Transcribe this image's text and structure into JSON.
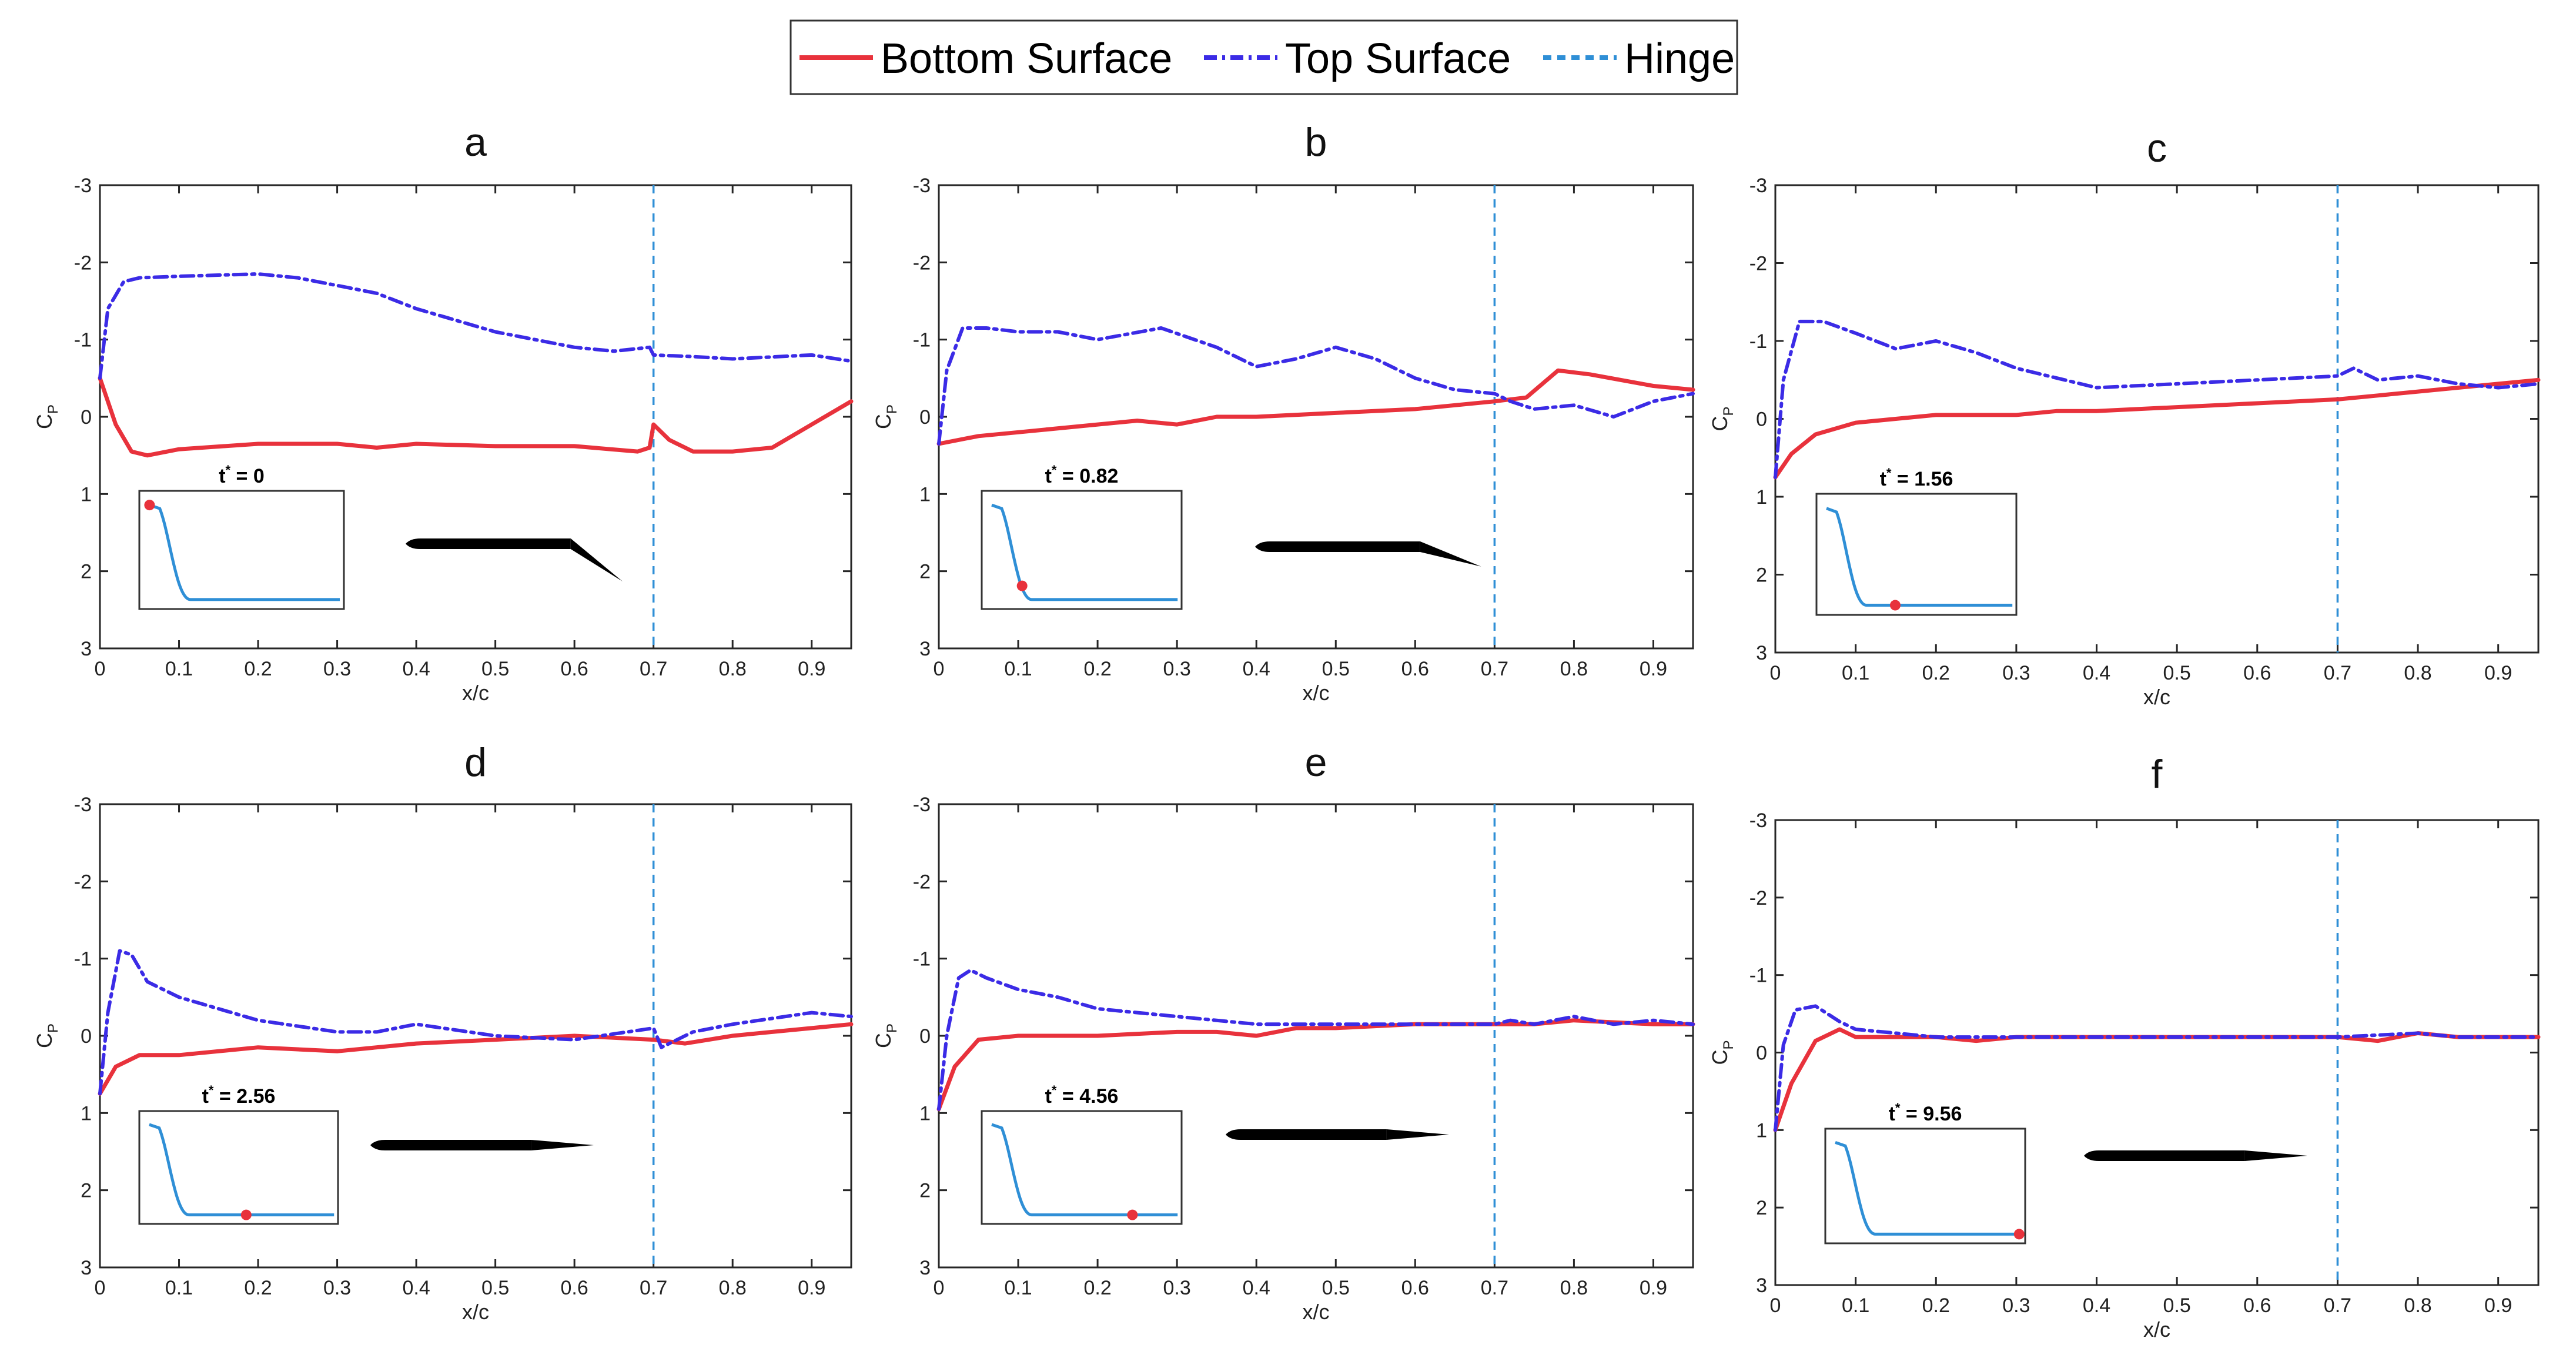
{
  "chart_data": {
    "type": "line",
    "legend": {
      "placement": "top-center",
      "entries": [
        {
          "name": "Bottom Surface",
          "color": "#e8323c",
          "style": "solid"
        },
        {
          "name": "Top Surface",
          "color": "#3b2be6",
          "style": "dash-dot"
        },
        {
          "name": "Hinge",
          "color": "#2f8fd6",
          "style": "dashed"
        }
      ]
    },
    "xlabel": "x/c",
    "ylabel": "C",
    "ylabel_sub": "P",
    "xlim": [
      0,
      0.95
    ],
    "ylim": [
      -3,
      3
    ],
    "y_reversed": true,
    "xticks": [
      0,
      0.1,
      0.2,
      0.3,
      0.4,
      0.5,
      0.6,
      0.7,
      0.8,
      0.9
    ],
    "xtick_labels": [
      "0",
      "0.1",
      "0.2",
      "0.3",
      "0.4",
      "0.5",
      "0.6",
      "0.7",
      "0.8",
      "0.9"
    ],
    "yticks": [
      -3,
      -2,
      -1,
      0,
      1,
      2,
      3
    ],
    "ytick_labels": [
      "-3",
      "-2",
      "-1",
      "0",
      "1",
      "2",
      "3"
    ],
    "hinge_x": 0.7,
    "inset": {
      "time_label_prefix": "t",
      "time_label_sup": "*",
      "curve_color": "#2f8fd6",
      "marker_color": "#e8323c"
    },
    "panels": [
      {
        "title": "a",
        "time": "0",
        "marker_x": 0.0,
        "flap_angle": 36,
        "bottom": {
          "x": [
            0,
            0.02,
            0.04,
            0.06,
            0.1,
            0.2,
            0.3,
            0.35,
            0.4,
            0.5,
            0.6,
            0.68,
            0.695,
            0.7,
            0.72,
            0.75,
            0.8,
            0.85,
            0.9,
            0.95
          ],
          "y": [
            -0.5,
            0.1,
            0.45,
            0.5,
            0.42,
            0.35,
            0.35,
            0.4,
            0.35,
            0.38,
            0.38,
            0.45,
            0.4,
            0.1,
            0.3,
            0.45,
            0.45,
            0.4,
            0.1,
            -0.2
          ]
        },
        "top": {
          "x": [
            0,
            0.01,
            0.03,
            0.05,
            0.1,
            0.2,
            0.25,
            0.3,
            0.35,
            0.4,
            0.5,
            0.6,
            0.65,
            0.695,
            0.7,
            0.75,
            0.8,
            0.9,
            0.95
          ],
          "y": [
            -0.5,
            -1.4,
            -1.75,
            -1.8,
            -1.82,
            -1.85,
            -1.8,
            -1.7,
            -1.6,
            -1.4,
            -1.1,
            -0.9,
            -0.85,
            -0.9,
            -0.8,
            -0.78,
            -0.75,
            -0.8,
            -0.72
          ]
        }
      },
      {
        "title": "b",
        "time": "0.82",
        "marker_x": 0.38,
        "flap_angle": 18,
        "bottom": {
          "x": [
            0,
            0.05,
            0.1,
            0.2,
            0.25,
            0.3,
            0.35,
            0.4,
            0.5,
            0.6,
            0.7,
            0.74,
            0.78,
            0.82,
            0.9,
            0.95
          ],
          "y": [
            0.35,
            0.25,
            0.2,
            0.1,
            0.05,
            0.1,
            0.0,
            0.0,
            -0.05,
            -0.1,
            -0.2,
            -0.25,
            -0.6,
            -0.55,
            -0.4,
            -0.35
          ]
        },
        "top": {
          "x": [
            0,
            0.01,
            0.03,
            0.06,
            0.1,
            0.15,
            0.2,
            0.28,
            0.35,
            0.4,
            0.45,
            0.5,
            0.55,
            0.6,
            0.65,
            0.7,
            0.72,
            0.75,
            0.8,
            0.85,
            0.9,
            0.95
          ],
          "y": [
            0.35,
            -0.6,
            -1.15,
            -1.15,
            -1.1,
            -1.1,
            -1.0,
            -1.15,
            -0.9,
            -0.65,
            -0.75,
            -0.9,
            -0.75,
            -0.5,
            -0.35,
            -0.3,
            -0.2,
            -0.1,
            -0.15,
            0.0,
            -0.2,
            -0.3
          ]
        }
      },
      {
        "title": "c",
        "time": "1.56",
        "marker_x": 0.6,
        "flap_angle": 0,
        "bottom": {
          "x": [
            0,
            0.02,
            0.05,
            0.1,
            0.2,
            0.3,
            0.35,
            0.4,
            0.5,
            0.6,
            0.7,
            0.75,
            0.8,
            0.85,
            0.9,
            0.95
          ],
          "y": [
            0.75,
            0.45,
            0.2,
            0.05,
            -0.05,
            -0.05,
            -0.1,
            -0.1,
            -0.15,
            -0.2,
            -0.25,
            -0.3,
            -0.35,
            -0.4,
            -0.45,
            -0.5
          ]
        },
        "top": {
          "x": [
            0,
            0.01,
            0.03,
            0.06,
            0.1,
            0.15,
            0.2,
            0.25,
            0.3,
            0.4,
            0.5,
            0.6,
            0.7,
            0.72,
            0.75,
            0.8,
            0.85,
            0.9,
            0.95
          ],
          "y": [
            0.75,
            -0.5,
            -1.25,
            -1.25,
            -1.1,
            -0.9,
            -1.0,
            -0.85,
            -0.65,
            -0.4,
            -0.45,
            -0.5,
            -0.55,
            -0.65,
            -0.5,
            -0.55,
            -0.45,
            -0.4,
            -0.45
          ]
        }
      },
      {
        "title": "d",
        "time": "2.56",
        "marker_x": 0.7,
        "flap_angle": 0,
        "bottom": {
          "x": [
            0,
            0.02,
            0.05,
            0.1,
            0.2,
            0.3,
            0.4,
            0.5,
            0.6,
            0.7,
            0.74,
            0.8,
            0.85,
            0.9,
            0.95
          ],
          "y": [
            0.75,
            0.4,
            0.25,
            0.25,
            0.15,
            0.2,
            0.1,
            0.05,
            0.0,
            0.05,
            0.1,
            0.0,
            -0.05,
            -0.1,
            -0.15
          ]
        },
        "top": {
          "x": [
            0,
            0.01,
            0.025,
            0.04,
            0.06,
            0.1,
            0.15,
            0.2,
            0.3,
            0.35,
            0.4,
            0.5,
            0.6,
            0.7,
            0.71,
            0.75,
            0.8,
            0.9,
            0.95
          ],
          "y": [
            0.75,
            -0.3,
            -1.1,
            -1.05,
            -0.7,
            -0.5,
            -0.35,
            -0.2,
            -0.05,
            -0.05,
            -0.15,
            0.0,
            0.05,
            -0.1,
            0.15,
            -0.05,
            -0.15,
            -0.3,
            -0.25
          ]
        }
      },
      {
        "title": "e",
        "time": "4.56",
        "marker_x": 0.85,
        "flap_angle": 0,
        "bottom": {
          "x": [
            0,
            0.02,
            0.05,
            0.1,
            0.2,
            0.3,
            0.35,
            0.4,
            0.45,
            0.5,
            0.6,
            0.7,
            0.75,
            0.8,
            0.9,
            0.95
          ],
          "y": [
            0.95,
            0.4,
            0.05,
            0.0,
            0.0,
            -0.05,
            -0.05,
            0.0,
            -0.1,
            -0.1,
            -0.15,
            -0.15,
            -0.15,
            -0.2,
            -0.15,
            -0.15
          ]
        },
        "top": {
          "x": [
            0,
            0.01,
            0.025,
            0.04,
            0.06,
            0.1,
            0.15,
            0.2,
            0.3,
            0.4,
            0.5,
            0.6,
            0.7,
            0.72,
            0.75,
            0.8,
            0.85,
            0.9,
            0.95
          ],
          "y": [
            0.95,
            0.0,
            -0.75,
            -0.85,
            -0.75,
            -0.6,
            -0.5,
            -0.35,
            -0.25,
            -0.15,
            -0.15,
            -0.15,
            -0.15,
            -0.2,
            -0.15,
            -0.25,
            -0.15,
            -0.2,
            -0.15
          ]
        }
      },
      {
        "title": "f",
        "time": "9.56",
        "marker_x": 1.0,
        "flap_angle": 0,
        "bottom": {
          "x": [
            0,
            0.02,
            0.05,
            0.08,
            0.1,
            0.2,
            0.25,
            0.3,
            0.4,
            0.5,
            0.6,
            0.7,
            0.75,
            0.8,
            0.85,
            0.9,
            0.95
          ],
          "y": [
            1.0,
            0.4,
            -0.15,
            -0.3,
            -0.2,
            -0.2,
            -0.15,
            -0.2,
            -0.2,
            -0.2,
            -0.2,
            -0.2,
            -0.15,
            -0.25,
            -0.2,
            -0.2,
            -0.2
          ]
        },
        "top": {
          "x": [
            0,
            0.01,
            0.025,
            0.05,
            0.08,
            0.1,
            0.15,
            0.2,
            0.3,
            0.4,
            0.5,
            0.6,
            0.7,
            0.8,
            0.85,
            0.9,
            0.95
          ],
          "y": [
            1.0,
            -0.1,
            -0.55,
            -0.6,
            -0.4,
            -0.3,
            -0.25,
            -0.2,
            -0.2,
            -0.2,
            -0.2,
            -0.2,
            -0.2,
            -0.25,
            -0.2,
            -0.2,
            -0.2
          ]
        }
      }
    ]
  }
}
